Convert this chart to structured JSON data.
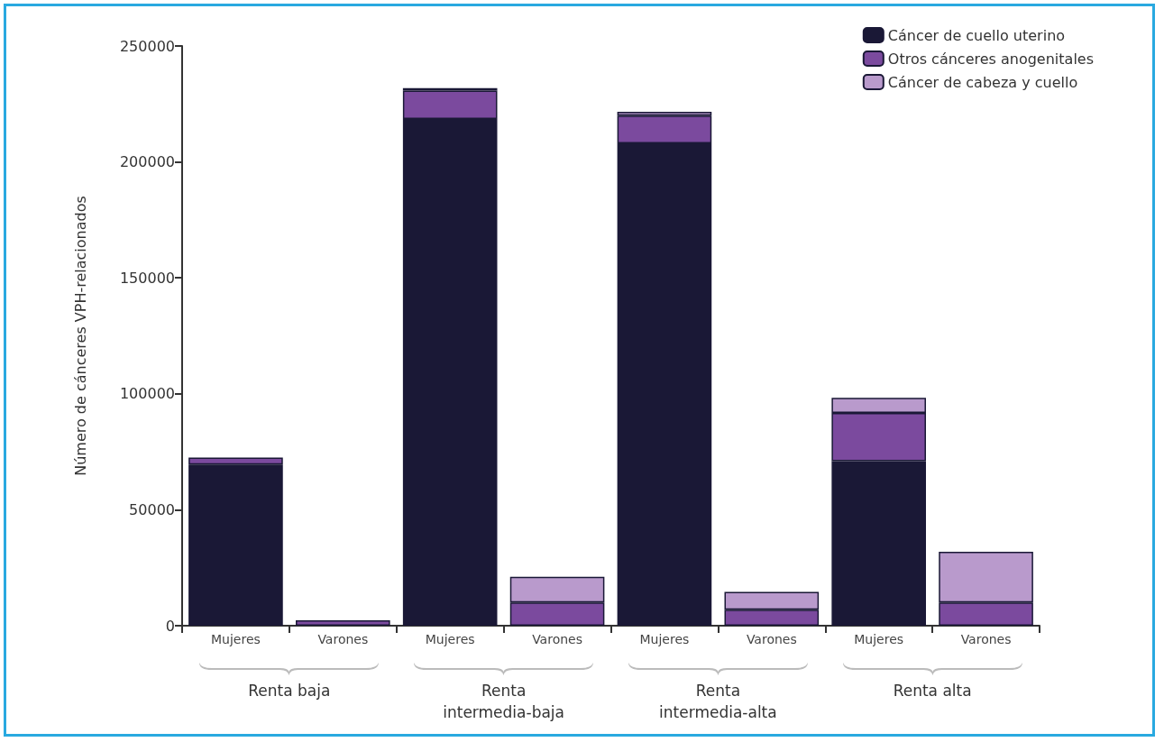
{
  "chart_data": {
    "type": "bar",
    "stacked": true,
    "ylabel": "Número de cánceres VPH-relacionados",
    "categories": [
      "Mujeres",
      "Varones",
      "Mujeres",
      "Varones",
      "Mujeres",
      "Varones",
      "Mujeres",
      "Varones"
    ],
    "series": [
      {
        "name": "Cáncer de cuello uterino",
        "color": "#1a1836",
        "values": [
          69500,
          0,
          218500,
          0,
          208000,
          0,
          71000,
          0
        ]
      },
      {
        "name": "Otros cánceres anogenitales",
        "color": "#7b4a9e",
        "values": [
          3000,
          2300,
          12300,
          10000,
          12000,
          6900,
          20800,
          10000
        ]
      },
      {
        "name": "Cáncer de cabeza y cuello",
        "color": "#b99acc",
        "values": [
          0,
          0,
          1000,
          11100,
          1600,
          7700,
          6500,
          21900
        ]
      }
    ],
    "annotations": [
      "Renta baja",
      "Renta\nintermedia-baja",
      "Renta\nintermedia-alta",
      "Renta alta"
    ],
    "ylim": [
      0,
      250000
    ],
    "yticks": [
      0,
      50000,
      100000,
      150000,
      200000,
      250000
    ],
    "grid": false,
    "legend": "top right"
  }
}
